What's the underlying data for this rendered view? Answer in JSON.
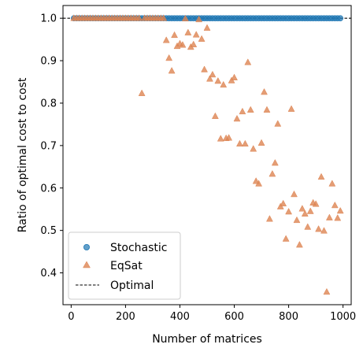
{
  "chart_data": {
    "type": "scatter",
    "xlabel": "Number of matrices",
    "ylabel": "Ratio of optimal cost to cost",
    "xlim": [
      -30,
      1030
    ],
    "ylim": [
      0.325,
      1.03
    ],
    "xticks": [
      0,
      200,
      400,
      600,
      800,
      1000
    ],
    "yticks": [
      0.4,
      0.5,
      0.6,
      0.7,
      0.8,
      0.9,
      1.0
    ],
    "xtick_labels": [
      "0",
      "200",
      "400",
      "600",
      "800",
      "1000"
    ],
    "ytick_labels": [
      "0.4",
      "0.5",
      "0.6",
      "0.7",
      "0.8",
      "0.9",
      "1.0"
    ],
    "grid": false,
    "legend_position": "lower-left",
    "optimal_line": {
      "name": "Optimal",
      "y": 1.0,
      "color": "#333333",
      "style": "dashed"
    },
    "series": [
      {
        "name": "Stochastic",
        "marker": "circle",
        "color": "#1f77b4",
        "x": [
          10,
          20,
          30,
          40,
          50,
          60,
          70,
          80,
          90,
          100,
          110,
          120,
          130,
          140,
          150,
          160,
          170,
          180,
          190,
          200,
          210,
          220,
          230,
          240,
          250,
          260,
          270,
          280,
          290,
          300,
          310,
          320,
          330,
          340,
          350,
          360,
          370,
          380,
          390,
          400,
          410,
          420,
          430,
          440,
          450,
          460,
          470,
          480,
          490,
          500,
          510,
          520,
          530,
          540,
          550,
          560,
          570,
          580,
          590,
          600,
          610,
          620,
          630,
          640,
          650,
          660,
          670,
          680,
          690,
          700,
          710,
          720,
          730,
          740,
          750,
          760,
          770,
          780,
          790,
          800,
          810,
          820,
          830,
          840,
          850,
          860,
          870,
          880,
          890,
          900,
          910,
          920,
          930,
          940,
          950,
          960,
          970,
          980,
          990
        ],
        "y": [
          1.0,
          1.0,
          1.0,
          1.0,
          1.0,
          1.0,
          1.0,
          1.0,
          1.0,
          1.0,
          1.0,
          1.0,
          1.0,
          1.0,
          1.0,
          1.0,
          1.0,
          1.0,
          1.0,
          1.0,
          1.0,
          1.0,
          1.0,
          1.0,
          1.0,
          1.0,
          1.0,
          1.0,
          1.0,
          1.0,
          1.0,
          1.0,
          1.0,
          1.0,
          1.0,
          1.0,
          1.0,
          1.0,
          1.0,
          1.0,
          1.0,
          1.0,
          1.0,
          1.0,
          1.0,
          1.0,
          1.0,
          1.0,
          1.0,
          1.0,
          1.0,
          1.0,
          1.0,
          1.0,
          1.0,
          1.0,
          1.0,
          1.0,
          1.0,
          1.0,
          1.0,
          1.0,
          1.0,
          1.0,
          1.0,
          1.0,
          1.0,
          1.0,
          1.0,
          1.0,
          1.0,
          1.0,
          1.0,
          1.0,
          1.0,
          1.0,
          1.0,
          1.0,
          1.0,
          1.0,
          1.0,
          1.0,
          1.0,
          1.0,
          1.0,
          1.0,
          1.0,
          1.0,
          1.0,
          1.0,
          1.0,
          1.0,
          1.0,
          1.0,
          1.0,
          1.0,
          1.0,
          1.0,
          1.0
        ]
      },
      {
        "name": "EqSat",
        "marker": "triangle",
        "color": "#dd8452",
        "x": [
          10,
          20,
          30,
          40,
          50,
          60,
          70,
          80,
          90,
          100,
          110,
          120,
          130,
          140,
          150,
          160,
          170,
          180,
          190,
          200,
          210,
          220,
          230,
          240,
          250,
          260,
          270,
          280,
          290,
          300,
          310,
          320,
          330,
          340,
          350,
          360,
          370,
          380,
          390,
          400,
          410,
          420,
          430,
          440,
          450,
          460,
          470,
          480,
          490,
          500,
          510,
          520,
          530,
          540,
          550,
          560,
          570,
          580,
          590,
          600,
          610,
          620,
          630,
          640,
          650,
          660,
          670,
          680,
          690,
          700,
          710,
          720,
          730,
          740,
          750,
          760,
          770,
          780,
          790,
          800,
          810,
          820,
          830,
          840,
          850,
          860,
          870,
          880,
          890,
          900,
          910,
          920,
          930,
          940,
          950,
          960,
          970,
          980,
          990
        ],
        "y": [
          1.0,
          1.0,
          1.0,
          1.0,
          1.0,
          1.0,
          1.0,
          1.0,
          1.0,
          1.0,
          1.0,
          1.0,
          1.0,
          1.0,
          1.0,
          1.0,
          1.0,
          1.0,
          1.0,
          1.0,
          1.0,
          1.0,
          1.0,
          1.0,
          1.0,
          0.823,
          1.0,
          1.0,
          1.0,
          1.0,
          1.0,
          1.0,
          1.0,
          1.0,
          0.948,
          0.906,
          0.876,
          0.96,
          0.934,
          0.94,
          0.937,
          0.999,
          0.966,
          0.932,
          0.938,
          0.961,
          0.997,
          0.951,
          0.879,
          0.977,
          0.857,
          0.867,
          0.769,
          0.852,
          0.716,
          0.843,
          0.717,
          0.718,
          0.853,
          0.86,
          0.763,
          0.704,
          0.78,
          0.704,
          0.896,
          0.784,
          0.692,
          0.616,
          0.61,
          0.706,
          0.826,
          0.784,
          0.527,
          0.633,
          0.659,
          0.751,
          0.556,
          0.563,
          0.48,
          0.544,
          0.786,
          0.585,
          0.524,
          0.466,
          0.551,
          0.539,
          0.508,
          0.545,
          0.565,
          0.562,
          0.503,
          0.626,
          0.499,
          0.355,
          0.53,
          0.61,
          0.559,
          0.529,
          0.546
        ]
      }
    ]
  }
}
